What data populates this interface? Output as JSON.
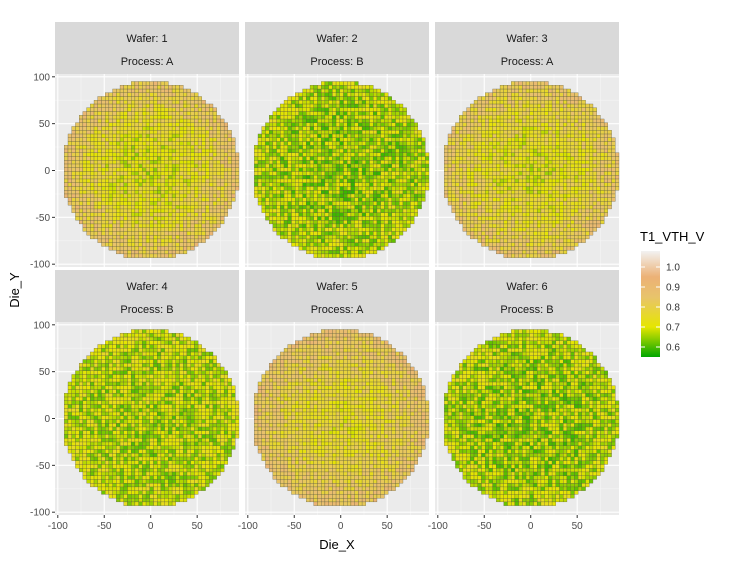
{
  "chart_data": {
    "type": "heatmap",
    "xlabel": "Die_X",
    "ylabel": "Die_Y",
    "xlim": [
      -103,
      95
    ],
    "ylim": [
      -103,
      103
    ],
    "x_ticks": [
      -100,
      -50,
      0,
      50
    ],
    "x_tick_labels": [
      "-100",
      "-50",
      "0",
      "50"
    ],
    "y_ticks": [
      -100,
      -50,
      0,
      50,
      100
    ],
    "y_tick_labels": [
      "-100",
      "-50",
      "0",
      "50",
      "100"
    ],
    "wafer_radius": 95,
    "die_size": 4,
    "legend": {
      "title": "T1_VTH_V",
      "position": "right",
      "min": 0.55,
      "max": 1.08,
      "ticks": [
        0.6,
        0.7,
        0.8,
        0.9,
        1.0
      ],
      "tick_labels": [
        "0.6",
        "0.7",
        "0.8",
        "0.9",
        "1.0"
      ],
      "colors": [
        {
          "value": 0.55,
          "color": "#00a600"
        },
        {
          "value": 0.7,
          "color": "#e6e600"
        },
        {
          "value": 0.85,
          "color": "#e8c36b"
        },
        {
          "value": 0.95,
          "color": "#ecb176"
        },
        {
          "value": 1.08,
          "color": "#f2f2f2"
        }
      ]
    },
    "grid": true,
    "panels": [
      {
        "wafer": "Wafer: 1",
        "process": "Process: A",
        "center_value": 0.72,
        "edge_value": 0.86,
        "noise": 0.08
      },
      {
        "wafer": "Wafer: 2",
        "process": "Process: B",
        "center_value": 0.65,
        "edge_value": 0.68,
        "noise": 0.07
      },
      {
        "wafer": "Wafer: 3",
        "process": "Process: A",
        "center_value": 0.73,
        "edge_value": 0.85,
        "noise": 0.08
      },
      {
        "wafer": "Wafer: 4",
        "process": "Process: B",
        "center_value": 0.67,
        "edge_value": 0.69,
        "noise": 0.07
      },
      {
        "wafer": "Wafer: 5",
        "process": "Process: A",
        "center_value": 0.75,
        "edge_value": 0.87,
        "noise": 0.07
      },
      {
        "wafer": "Wafer: 6",
        "process": "Process: B",
        "center_value": 0.65,
        "edge_value": 0.68,
        "noise": 0.07
      }
    ]
  }
}
